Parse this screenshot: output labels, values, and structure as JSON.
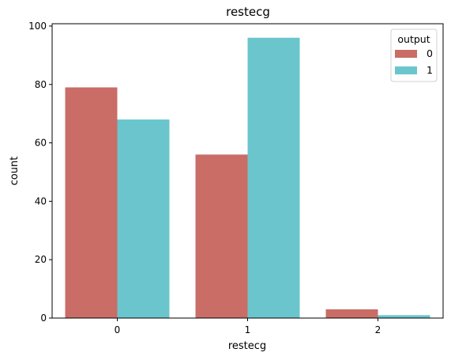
{
  "chart_data": {
    "type": "bar",
    "title": "restecg",
    "xlabel": "restecg",
    "ylabel": "count",
    "categories": [
      "0",
      "1",
      "2"
    ],
    "ylim": [
      0,
      100
    ],
    "yticks": [
      "0",
      "20",
      "40",
      "60",
      "80",
      "100"
    ],
    "legend": {
      "title": "output",
      "placement": "top-right"
    },
    "series": [
      {
        "name": "0",
        "color": "#c96d66",
        "values": [
          79,
          56,
          3
        ]
      },
      {
        "name": "1",
        "color": "#6ac6cc",
        "values": [
          68,
          96,
          1
        ]
      }
    ],
    "grid": false
  }
}
